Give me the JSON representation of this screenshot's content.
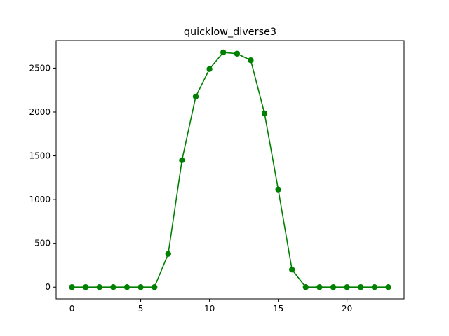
{
  "chart_data": {
    "type": "line",
    "title": "quicklow_diverse3",
    "xlabel": "",
    "ylabel": "",
    "xlim": [
      -1.15,
      24.15
    ],
    "ylim": [
      -134,
      2815
    ],
    "xticks": [
      0,
      5,
      10,
      15,
      20
    ],
    "yticks": [
      0,
      500,
      1000,
      1500,
      2000,
      2500
    ],
    "grid": false,
    "legend": null,
    "series": [
      {
        "color": "#008000",
        "marker": "circle",
        "x": [
          0,
          1,
          2,
          3,
          4,
          5,
          6,
          7,
          8,
          9,
          10,
          11,
          12,
          13,
          14,
          15,
          16,
          17,
          18,
          19,
          20,
          21,
          22,
          23
        ],
        "values": [
          0,
          0,
          0,
          0,
          0,
          0,
          0,
          380,
          1450,
          2175,
          2490,
          2680,
          2665,
          2590,
          1985,
          1115,
          200,
          0,
          0,
          0,
          0,
          0,
          0,
          0
        ]
      }
    ]
  }
}
